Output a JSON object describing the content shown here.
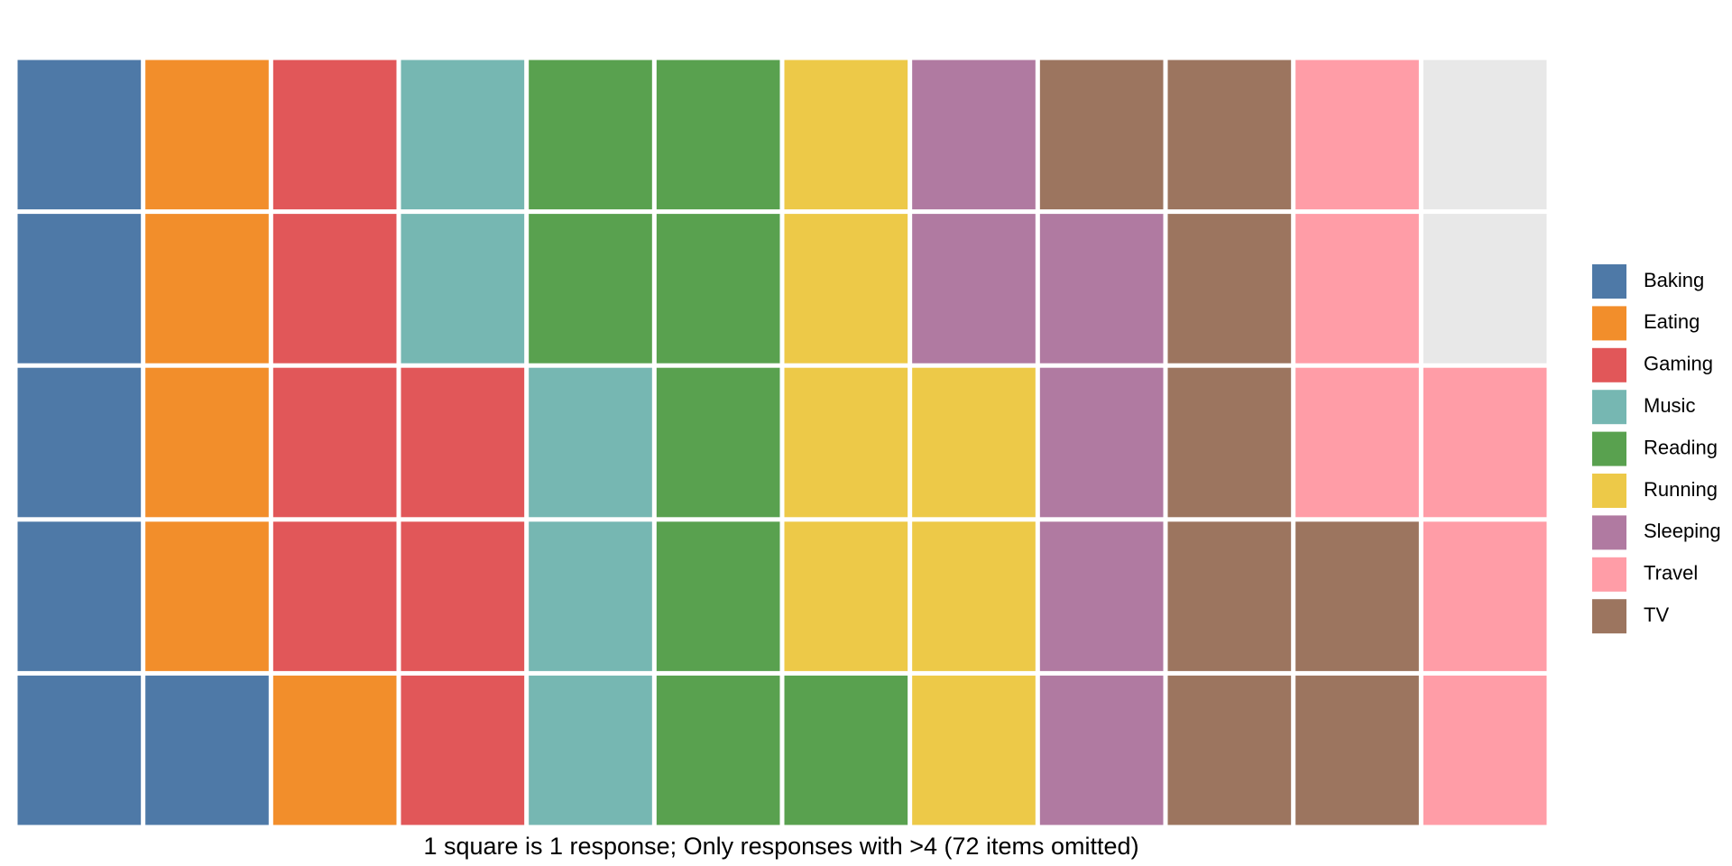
{
  "chart_data": {
    "type": "waffle",
    "caption": "1 square is 1 response; Only responses with >4 (72 items omitted)",
    "series": [
      {
        "name": "Baking",
        "color": "#4e79a7",
        "values": [
          6
        ]
      },
      {
        "name": "Eating",
        "color": "#f28e2b",
        "values": [
          5
        ]
      },
      {
        "name": "Gaming",
        "color": "#e15759",
        "values": [
          7
        ]
      },
      {
        "name": "Music",
        "color": "#76b7b2",
        "values": [
          5
        ]
      },
      {
        "name": "Reading",
        "color": "#59a14f",
        "values": [
          8
        ]
      },
      {
        "name": "Running",
        "color": "#edc948",
        "values": [
          7
        ]
      },
      {
        "name": "Sleeping",
        "color": "#b07aa1",
        "values": [
          6
        ]
      },
      {
        "name": "Travel",
        "color": "#ff9da7",
        "values": [
          6
        ]
      },
      {
        "name": "TV",
        "color": "#9c755f",
        "values": [
          8
        ]
      }
    ]
  }
}
